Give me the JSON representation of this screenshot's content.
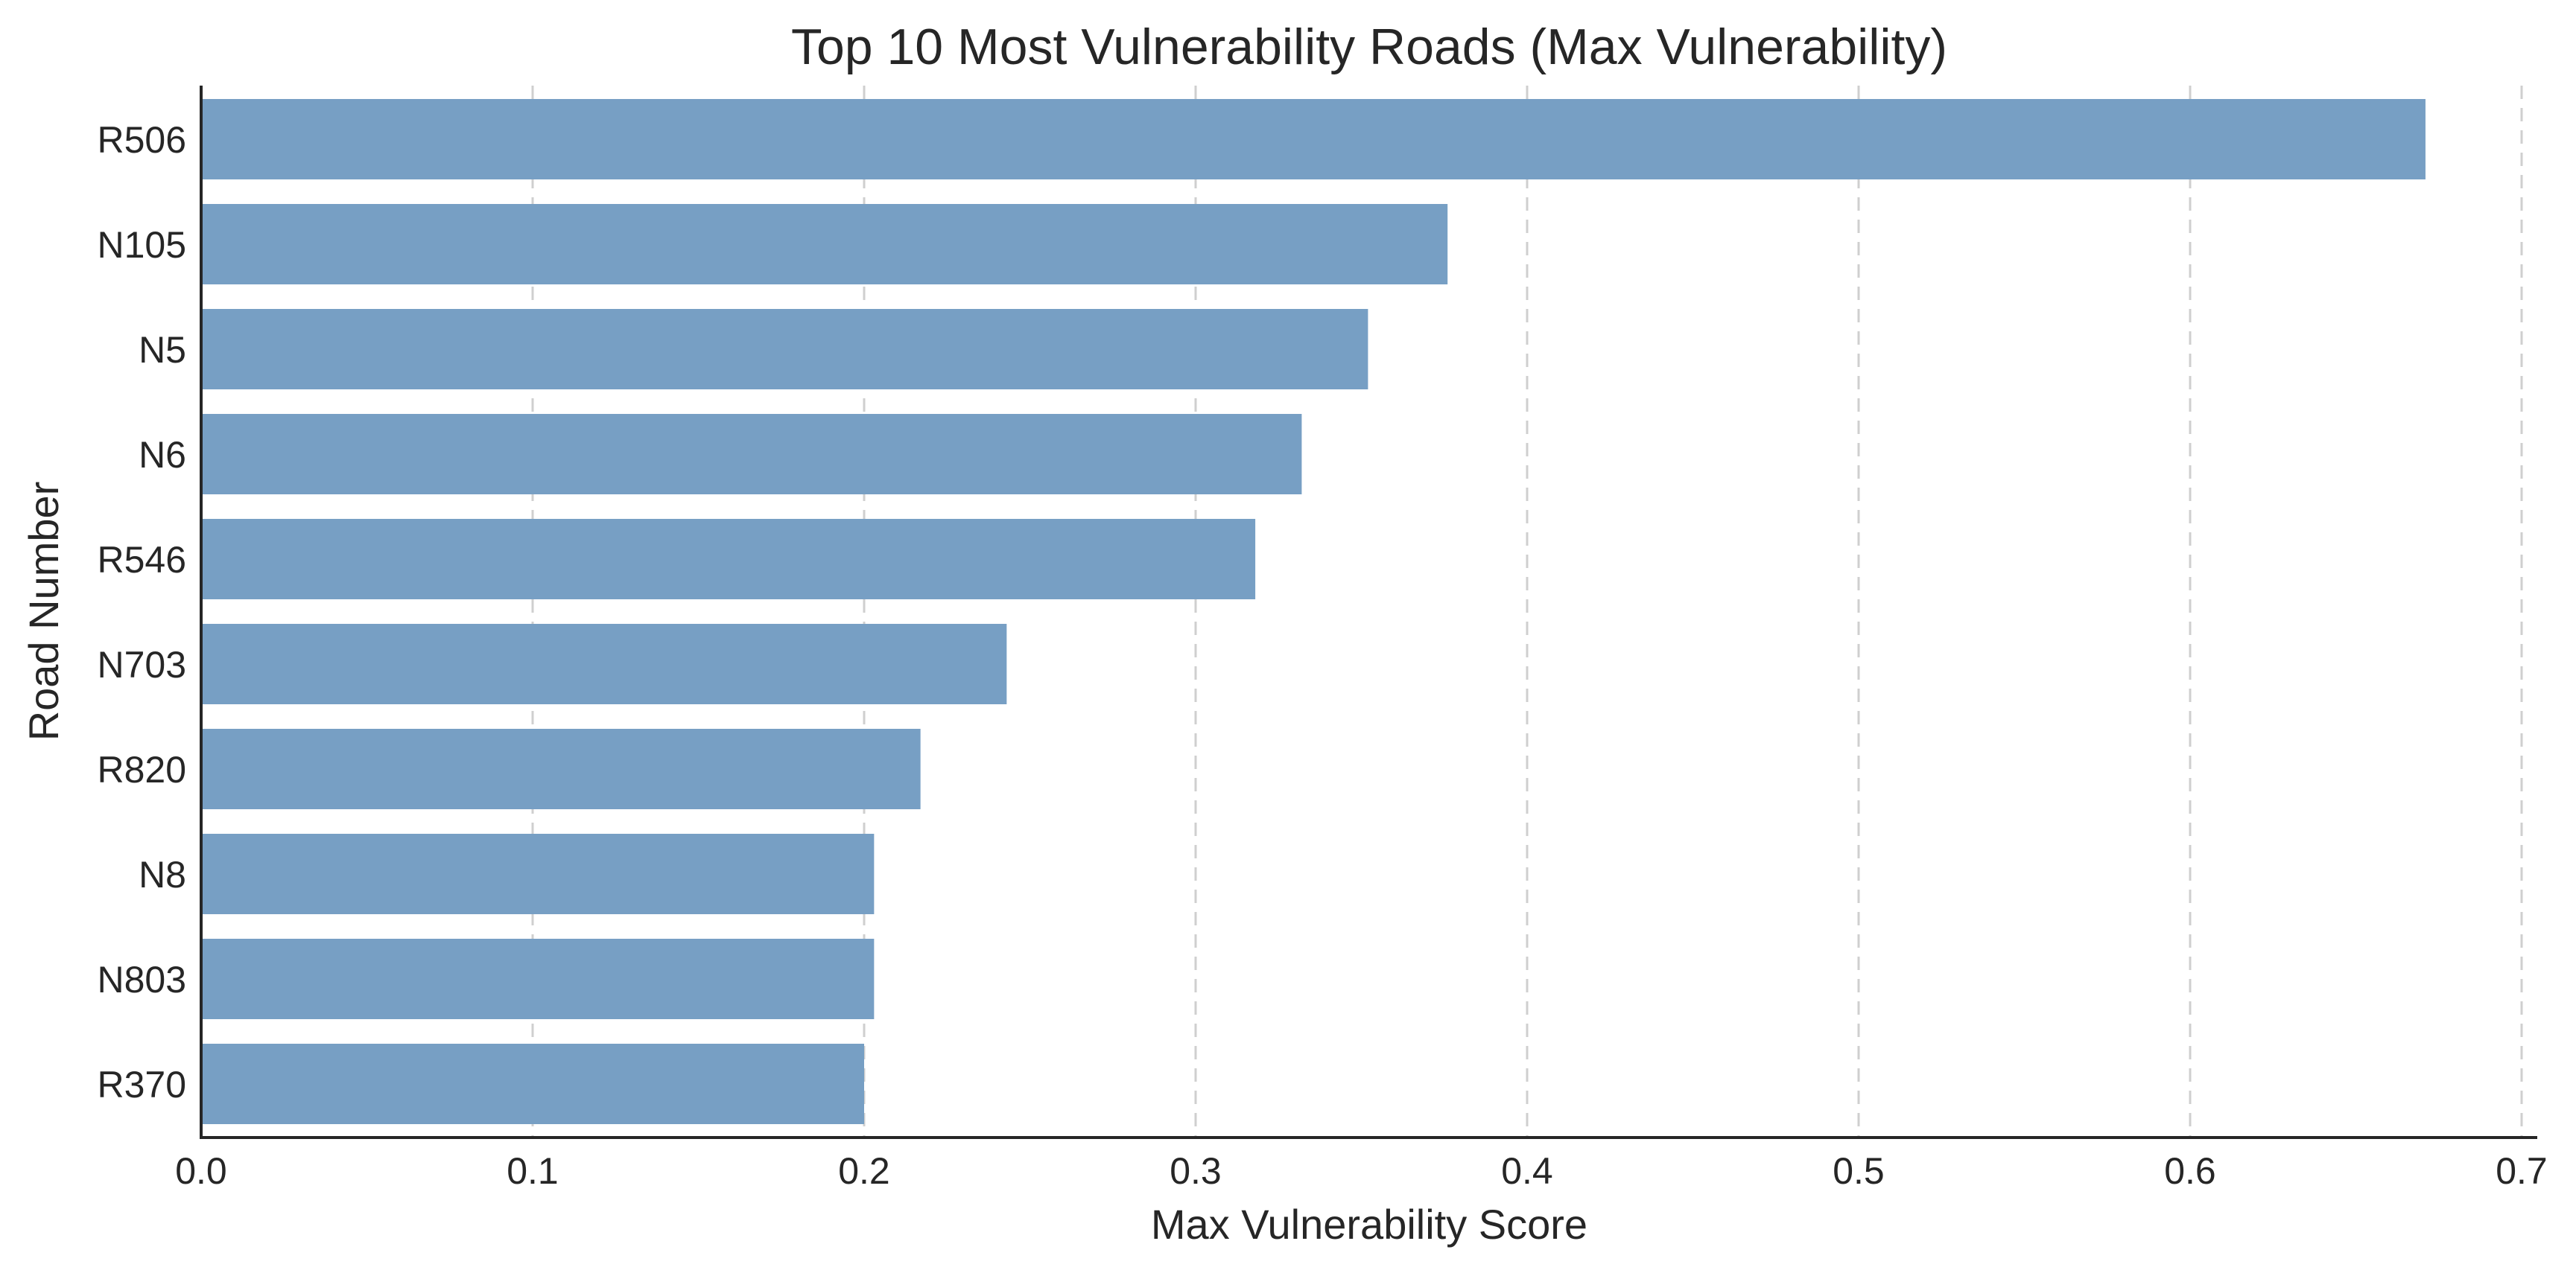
{
  "chart_data": {
    "type": "bar",
    "orientation": "horizontal",
    "title": "Top 10 Most Vulnerability Roads (Max Vulnerability)",
    "xlabel": "Max Vulnerability Score",
    "ylabel": "Road Number",
    "categories": [
      "R506",
      "N105",
      "N5",
      "N6",
      "R546",
      "N703",
      "R820",
      "N8",
      "N803",
      "R370"
    ],
    "values": [
      0.671,
      0.376,
      0.352,
      0.332,
      0.318,
      0.243,
      0.217,
      0.203,
      0.203,
      0.2
    ],
    "xlim": [
      0.0,
      0.7
    ],
    "xticks": [
      "0.0",
      "0.1",
      "0.2",
      "0.3",
      "0.4",
      "0.5",
      "0.6",
      "0.7"
    ],
    "grid": "x-axis dashed",
    "legend": "none",
    "bar_color": "#779fc4"
  }
}
